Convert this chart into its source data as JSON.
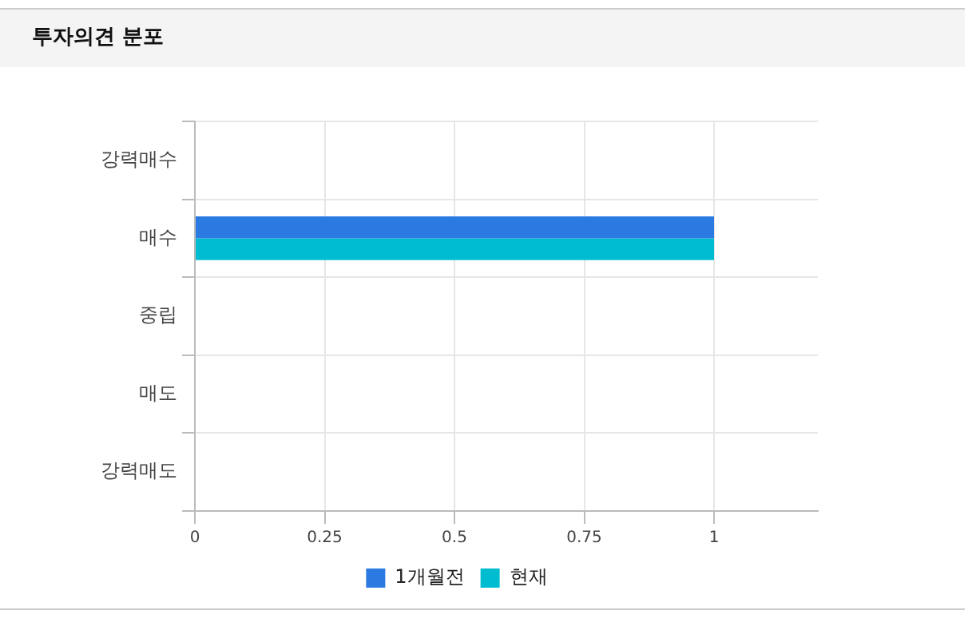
{
  "chart_data": {
    "type": "bar",
    "orientation": "horizontal",
    "title": "투자의견 분포",
    "categories": [
      "강력매수",
      "매수",
      "중립",
      "매도",
      "강력매도"
    ],
    "series": [
      {
        "name": "1개월전",
        "color": "#2a7ae2",
        "values": [
          0,
          1,
          0,
          0,
          0
        ]
      },
      {
        "name": "현재",
        "color": "#00bcd0",
        "values": [
          0,
          1,
          0,
          0,
          0
        ]
      }
    ],
    "xlim": [
      0,
      1.2
    ],
    "xticks": [
      0,
      0.25,
      0.5,
      0.75,
      1
    ],
    "grid": true,
    "legend": "bottom"
  }
}
